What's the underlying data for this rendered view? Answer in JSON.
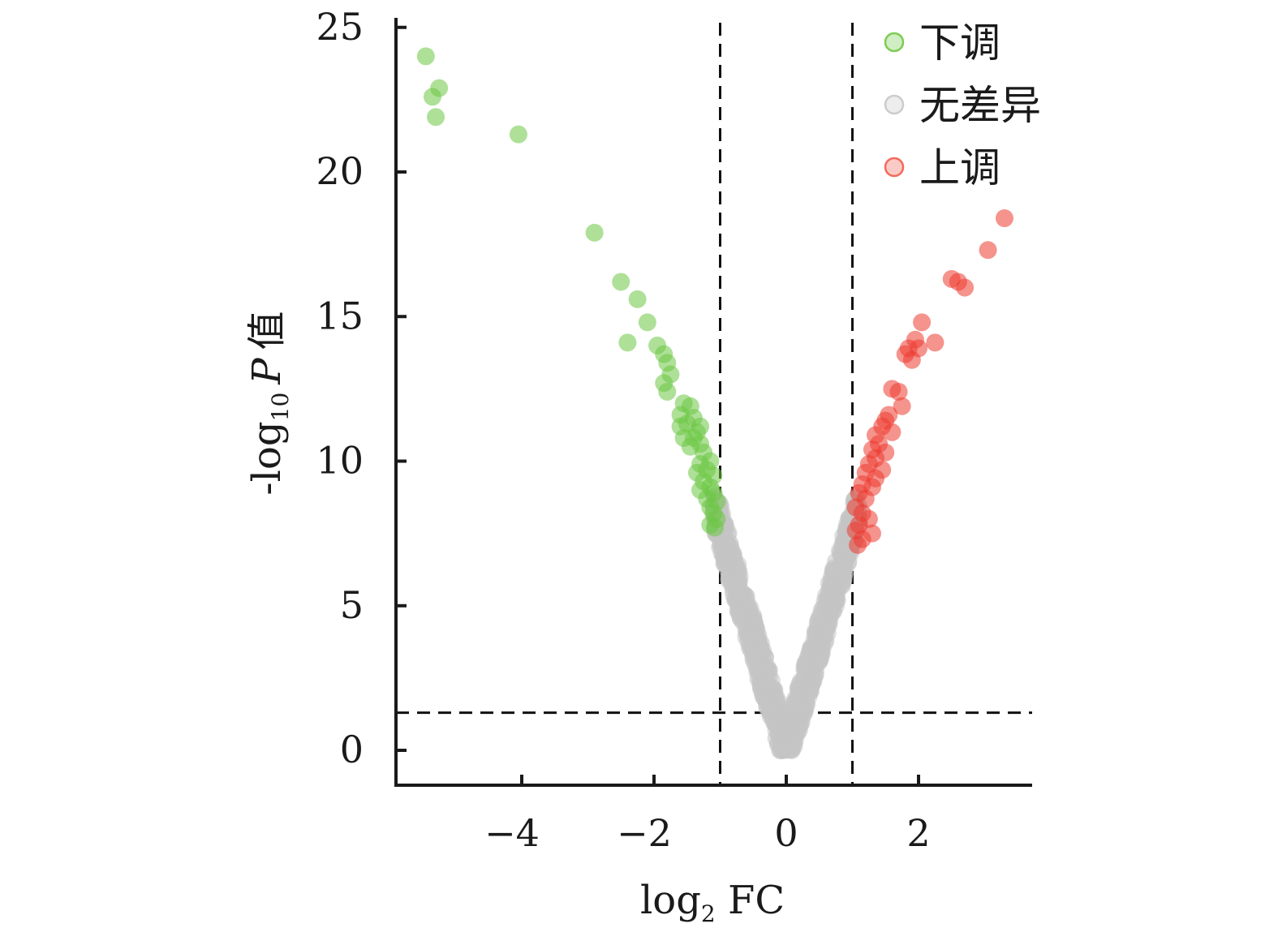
{
  "chart_data": {
    "type": "scatter",
    "title": "",
    "xlabel": {
      "base": "log",
      "sub": "2",
      "tail": " FC"
    },
    "ylabel": {
      "head": "-log",
      "sub": "10",
      "p": "P",
      "tail": "值"
    },
    "xlim": [
      -5.9,
      3.7
    ],
    "ylim": [
      -1.2,
      25.3
    ],
    "xticks": [
      -4,
      -2,
      0,
      2
    ],
    "xtick_labels": [
      "−4",
      "−2",
      "0",
      "2"
    ],
    "yticks": [
      0,
      5,
      10,
      15,
      20,
      25
    ],
    "ytick_labels": [
      "0",
      "5",
      "10",
      "15",
      "20",
      "25"
    ],
    "thresholds": {
      "x": [
        -1,
        1
      ],
      "y": 1.3
    },
    "legend": {
      "position": "top-right",
      "items": [
        {
          "label": "下调",
          "color": "#7ccc52"
        },
        {
          "label": "无差异",
          "color": "#cccccc"
        },
        {
          "label": "上调",
          "color": "#f26b5b"
        }
      ]
    },
    "series": [
      {
        "name": "下调",
        "color": "#6cc644",
        "points": [
          [
            -5.45,
            24.0
          ],
          [
            -5.25,
            22.9
          ],
          [
            -5.35,
            22.6
          ],
          [
            -5.3,
            21.9
          ],
          [
            -4.05,
            21.3
          ],
          [
            -2.9,
            17.9
          ],
          [
            -2.5,
            16.2
          ],
          [
            -2.25,
            15.6
          ],
          [
            -2.1,
            14.8
          ],
          [
            -2.4,
            14.1
          ],
          [
            -1.95,
            14.0
          ],
          [
            -1.85,
            13.7
          ],
          [
            -1.8,
            13.4
          ],
          [
            -1.75,
            13.0
          ],
          [
            -1.85,
            12.7
          ],
          [
            -1.8,
            12.4
          ],
          [
            -1.55,
            12.0
          ],
          [
            -1.45,
            11.9
          ],
          [
            -1.6,
            11.6
          ],
          [
            -1.4,
            11.5
          ],
          [
            -1.5,
            11.3
          ],
          [
            -1.3,
            11.2
          ],
          [
            -1.6,
            11.2
          ],
          [
            -1.35,
            11.0
          ],
          [
            -1.4,
            10.8
          ],
          [
            -1.55,
            10.8
          ],
          [
            -1.3,
            10.6
          ],
          [
            -1.45,
            10.5
          ],
          [
            -1.25,
            10.3
          ],
          [
            -1.15,
            10.0
          ],
          [
            -1.3,
            9.9
          ],
          [
            -1.2,
            9.7
          ],
          [
            -1.35,
            9.6
          ],
          [
            -1.1,
            9.5
          ],
          [
            -1.25,
            9.3
          ],
          [
            -1.15,
            9.1
          ],
          [
            -1.3,
            9.0
          ],
          [
            -1.1,
            8.9
          ],
          [
            -1.2,
            8.7
          ],
          [
            -1.05,
            8.6
          ],
          [
            -1.15,
            8.4
          ],
          [
            -1.1,
            8.2
          ],
          [
            -1.05,
            8.0
          ],
          [
            -1.15,
            7.8
          ],
          [
            -1.08,
            7.7
          ]
        ]
      },
      {
        "name": "无差异",
        "color": "#c4c4c4",
        "points": []
      },
      {
        "name": "上调",
        "color": "#ec3b30",
        "points": [
          [
            3.3,
            18.4
          ],
          [
            3.05,
            17.3
          ],
          [
            2.5,
            16.3
          ],
          [
            2.6,
            16.2
          ],
          [
            2.7,
            16.0
          ],
          [
            2.05,
            14.8
          ],
          [
            2.25,
            14.1
          ],
          [
            1.95,
            14.2
          ],
          [
            2.0,
            13.9
          ],
          [
            1.85,
            13.9
          ],
          [
            1.8,
            13.7
          ],
          [
            1.9,
            13.5
          ],
          [
            1.6,
            12.5
          ],
          [
            1.7,
            12.4
          ],
          [
            1.75,
            11.9
          ],
          [
            1.55,
            11.6
          ],
          [
            1.5,
            11.4
          ],
          [
            1.45,
            11.2
          ],
          [
            1.6,
            11.0
          ],
          [
            1.35,
            10.9
          ],
          [
            1.4,
            10.6
          ],
          [
            1.5,
            10.3
          ],
          [
            1.3,
            10.4
          ],
          [
            1.35,
            10.1
          ],
          [
            1.25,
            9.9
          ],
          [
            1.45,
            9.7
          ],
          [
            1.2,
            9.6
          ],
          [
            1.35,
            9.4
          ],
          [
            1.15,
            9.2
          ],
          [
            1.3,
            9.1
          ],
          [
            1.1,
            8.9
          ],
          [
            1.2,
            8.7
          ],
          [
            1.05,
            8.4
          ],
          [
            1.15,
            8.2
          ],
          [
            1.25,
            8.0
          ],
          [
            1.1,
            7.8
          ],
          [
            1.05,
            7.6
          ],
          [
            1.15,
            7.3
          ],
          [
            1.3,
            7.5
          ],
          [
            1.08,
            7.1
          ]
        ]
      }
    ],
    "nodiff_region": {
      "x": [
        -1.1,
        1.1
      ],
      "shape": "v",
      "slope": 7.7
    }
  }
}
